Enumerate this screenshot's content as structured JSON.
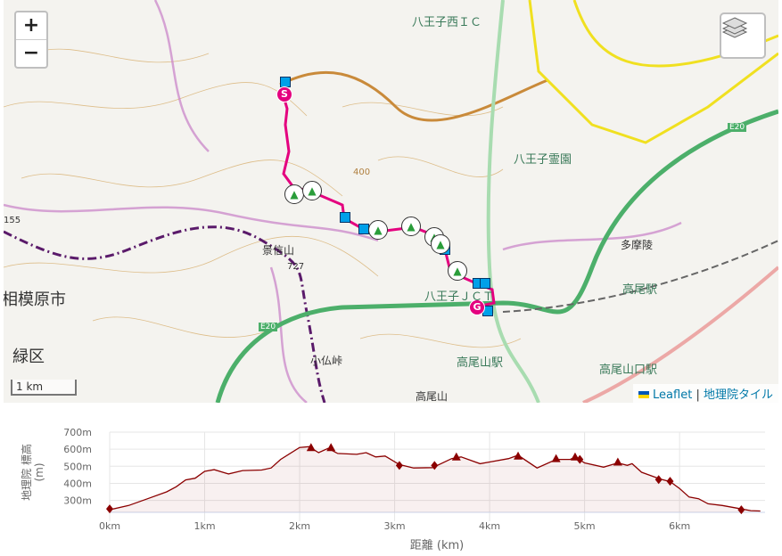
{
  "map": {
    "zoom_in": "+",
    "zoom_out": "−",
    "layers_icon": "layers-icon",
    "scale_label": "1 km",
    "attribution": {
      "leaflet": "Leaflet",
      "separator": "|",
      "tiles": "地理院タイル"
    },
    "start_marker": "S",
    "goal_marker": "G",
    "labels": {
      "hachioji_nishi_ic": "八王子西ＩＣ",
      "reien": "八王子霊園",
      "tamaryo": "多摩陵",
      "takao_sta": "高尾駅",
      "takaosanguchi_sta": "高尾山口駅",
      "takaosan_sta": "高尾山駅",
      "takaosan": "高尾山",
      "kobotoke": "小仏峠",
      "kagenobu": "景信山",
      "kagenobu_elev": "727",
      "sagamihara": "相模原市",
      "midori": "緑区",
      "jct": "八王子ＪＣＴ",
      "e20_a": "E20",
      "e20_b": "E20",
      "contour_400": "400",
      "elev_155": "155"
    },
    "colors": {
      "route": "#e4007f",
      "waypoint": "#00a0e9",
      "summit": "#2a9d3a",
      "expressway": "#4caf6a",
      "national_road": "#f0e020"
    }
  },
  "chart_data": {
    "type": "area",
    "xlabel": "距離 (km)",
    "ylabel": "地理院 標高 (m)",
    "xlim": [
      0,
      6.9
    ],
    "ylim": [
      230,
      700
    ],
    "xticks": [
      "0km",
      "1km",
      "2km",
      "3km",
      "4km",
      "5km",
      "6km"
    ],
    "yticks": [
      "300m",
      "400m",
      "500m",
      "600m",
      "700m"
    ],
    "grid": true,
    "line_color": "#8b0000",
    "profile": [
      [
        0,
        245
      ],
      [
        0.2,
        270
      ],
      [
        0.4,
        310
      ],
      [
        0.6,
        350
      ],
      [
        0.7,
        380
      ],
      [
        0.8,
        420
      ],
      [
        0.9,
        430
      ],
      [
        1.0,
        470
      ],
      [
        1.1,
        480
      ],
      [
        1.25,
        455
      ],
      [
        1.4,
        475
      ],
      [
        1.6,
        478
      ],
      [
        1.7,
        490
      ],
      [
        1.8,
        540
      ],
      [
        2.0,
        610
      ],
      [
        2.1,
        615
      ],
      [
        2.2,
        580
      ],
      [
        2.3,
        605
      ],
      [
        2.4,
        575
      ],
      [
        2.6,
        570
      ],
      [
        2.7,
        580
      ],
      [
        2.8,
        555
      ],
      [
        2.9,
        560
      ],
      [
        3.05,
        510
      ],
      [
        3.2,
        490
      ],
      [
        3.4,
        492
      ],
      [
        3.6,
        545
      ],
      [
        3.7,
        555
      ],
      [
        3.9,
        515
      ],
      [
        4.0,
        525
      ],
      [
        4.2,
        545
      ],
      [
        4.3,
        565
      ],
      [
        4.5,
        490
      ],
      [
        4.7,
        540
      ],
      [
        4.85,
        540
      ],
      [
        4.9,
        555
      ],
      [
        5.0,
        520
      ],
      [
        5.2,
        495
      ],
      [
        5.35,
        520
      ],
      [
        5.45,
        505
      ],
      [
        5.5,
        515
      ],
      [
        5.6,
        465
      ],
      [
        5.8,
        425
      ],
      [
        5.9,
        410
      ],
      [
        6.0,
        370
      ],
      [
        6.1,
        320
      ],
      [
        6.2,
        310
      ],
      [
        6.3,
        280
      ],
      [
        6.45,
        270
      ],
      [
        6.6,
        255
      ],
      [
        6.75,
        240
      ],
      [
        6.85,
        238
      ]
    ],
    "markers": [
      {
        "shape": "diamond",
        "x": 0,
        "y": 250
      },
      {
        "shape": "triangle",
        "x": 2.12,
        "y": 610
      },
      {
        "shape": "triangle",
        "x": 2.33,
        "y": 610
      },
      {
        "shape": "diamond",
        "x": 3.05,
        "y": 505
      },
      {
        "shape": "diamond",
        "x": 3.42,
        "y": 505
      },
      {
        "shape": "triangle",
        "x": 3.65,
        "y": 555
      },
      {
        "shape": "triangle",
        "x": 4.3,
        "y": 560
      },
      {
        "shape": "triangle",
        "x": 4.7,
        "y": 545
      },
      {
        "shape": "triangle",
        "x": 4.9,
        "y": 555
      },
      {
        "shape": "diamond",
        "x": 4.95,
        "y": 540
      },
      {
        "shape": "triangle",
        "x": 5.35,
        "y": 525
      },
      {
        "shape": "diamond",
        "x": 5.78,
        "y": 422
      },
      {
        "shape": "diamond",
        "x": 5.9,
        "y": 412
      },
      {
        "shape": "diamond",
        "x": 6.65,
        "y": 245
      }
    ]
  }
}
